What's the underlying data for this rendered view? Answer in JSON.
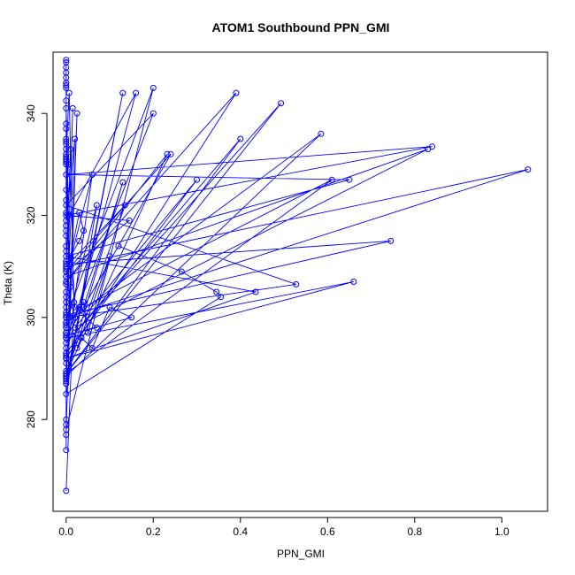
{
  "chart_data": {
    "type": "line",
    "title": "ATOM1 Southbound PPN_GMI",
    "xlabel": "PPN_GMI",
    "ylabel": "Theta (K)",
    "xlim": [
      -0.03,
      1.105
    ],
    "ylim": [
      262,
      352
    ],
    "xticks": [
      0.0,
      0.2,
      0.4,
      0.6,
      0.8,
      1.0
    ],
    "yticks": [
      280,
      300,
      320,
      340
    ],
    "xtick_labels": [
      "0.0",
      "0.2",
      "0.4",
      "0.6",
      "0.8",
      "1.0"
    ],
    "ytick_labels": [
      "280",
      "300",
      "320",
      "340"
    ],
    "markers": "open-circle",
    "grid": false,
    "color": "#0000ff",
    "series": [
      {
        "values": [
          [
            0.0,
            266.0
          ],
          [
            0.018,
            303.0
          ],
          [
            0.007,
            344.0
          ],
          [
            0.0,
            332.0
          ],
          [
            0.01,
            306.0
          ],
          [
            0.0,
            288.0
          ],
          [
            0.13,
            344.0
          ],
          [
            0.0,
            287.0
          ],
          [
            0.025,
            340.0
          ],
          [
            0.0,
            278.0
          ],
          [
            0.2,
            345.0
          ],
          [
            0.0,
            300.0
          ],
          [
            0.02,
            335.0
          ],
          [
            0.0,
            319.0
          ],
          [
            0.16,
            344.0
          ],
          [
            0.0,
            293.0
          ],
          [
            0.3,
            327.0
          ],
          [
            0.02,
            298.0
          ],
          [
            0.83,
            333.0
          ],
          [
            0.0,
            308.0
          ],
          [
            0.06,
            328.0
          ],
          [
            0.0,
            292.0
          ],
          [
            0.39,
            344.0
          ],
          [
            0.0,
            307.0
          ],
          [
            0.232,
            332.0
          ],
          [
            0.0,
            289.0
          ],
          [
            0.13,
            326.5
          ],
          [
            0.04,
            302.0
          ],
          [
            0.61,
            327.0
          ],
          [
            0.0,
            289.0
          ],
          [
            0.4,
            335.0
          ],
          [
            0.0,
            295.0
          ],
          [
            0.493,
            342.0
          ],
          [
            0.0,
            289.0
          ],
          [
            0.135,
            322.0
          ],
          [
            0.0,
            310.0
          ],
          [
            1.06,
            329.0
          ],
          [
            0.0,
            300.0
          ],
          [
            0.528,
            306.5
          ],
          [
            0.0,
            322.0
          ],
          [
            0.2,
            340.0
          ],
          [
            0.0,
            296.0
          ],
          [
            0.66,
            307.0
          ],
          [
            0.0,
            292.0
          ],
          [
            0.435,
            305.0
          ],
          [
            0.0,
            312.0
          ],
          [
            0.65,
            327.0
          ],
          [
            0.0,
            328.0
          ],
          [
            0.84,
            333.5
          ],
          [
            0.0,
            320.0
          ],
          [
            0.145,
            319.0
          ],
          [
            0.0,
            309.0
          ],
          [
            0.24,
            332.0
          ],
          [
            0.0,
            296.0
          ],
          [
            0.12,
            314.0
          ],
          [
            0.265,
            309.0
          ],
          [
            0.345,
            305.0
          ],
          [
            0.355,
            304.0
          ],
          [
            0.0,
            285.0
          ],
          [
            0.07,
            322.0
          ],
          [
            0.0,
            298.0
          ],
          [
            0.0,
            305.0
          ],
          [
            0.0,
            298.0
          ],
          [
            0.015,
            341.0
          ],
          [
            0.0,
            297.0
          ],
          [
            0.0,
            331.0
          ],
          [
            0.0,
            292.0
          ],
          [
            0.0,
            297.0
          ],
          [
            0.0,
            303.0
          ],
          [
            0.0,
            299.0
          ],
          [
            0.0,
            302.0
          ],
          [
            0.0,
            338.0
          ],
          [
            0.0,
            350.0
          ],
          [
            0.0,
            311.0
          ],
          [
            0.0,
            293.0
          ],
          [
            0.0,
            346.0
          ],
          [
            0.0,
            294.0
          ],
          [
            0.0,
            300.0
          ],
          [
            0.0,
            316.0
          ],
          [
            0.0,
            337.0
          ],
          [
            0.0,
            349.0
          ],
          [
            0.0,
            318.0
          ],
          [
            0.0,
            288.0
          ],
          [
            0.0,
            308.0
          ],
          [
            0.0,
            289.0
          ],
          [
            0.0,
            301.0
          ],
          [
            0.0,
            297.0
          ],
          [
            0.0,
            307.0
          ],
          [
            0.0,
            341.0
          ],
          [
            0.005,
            320.0
          ],
          [
            0.0,
            323.0
          ],
          [
            0.0,
            274.0
          ],
          [
            0.0,
            280.0
          ],
          [
            0.0,
            277.0
          ],
          [
            0.0,
            279.0
          ],
          [
            0.0,
            334.0
          ],
          [
            0.0,
            347.0
          ],
          [
            0.0,
            325.0
          ],
          [
            0.0,
            287.0
          ],
          [
            0.0,
            335.0
          ],
          [
            0.0,
            333.0
          ],
          [
            0.0,
            330.0
          ],
          [
            0.0,
            314.0
          ],
          [
            0.0,
            309.0
          ],
          [
            0.0,
            291.0
          ],
          [
            0.0,
            304.0
          ],
          [
            0.0,
            310.0
          ],
          [
            0.01,
            333.0
          ],
          [
            0.0,
            334.5
          ],
          [
            0.005,
            330.0
          ],
          [
            0.0,
            320.5
          ],
          [
            0.0,
            317.0
          ],
          [
            0.0,
            313.0
          ],
          [
            0.0,
            311.0
          ],
          [
            0.0,
            309.5
          ],
          [
            0.0,
            308.0
          ],
          [
            0.0,
            298.5
          ],
          [
            0.0,
            297.0
          ],
          [
            0.0,
            292.5
          ],
          [
            0.0,
            292.0
          ],
          [
            0.0,
            288.5
          ],
          [
            0.0,
            287.5
          ],
          [
            0.0,
            289.5
          ],
          [
            0.0,
            318.0
          ],
          [
            0.0,
            331.5
          ],
          [
            0.0,
            330.5
          ],
          [
            0.0,
            345.5
          ],
          [
            0.0,
            348.0
          ],
          [
            0.0,
            350.5
          ],
          [
            0.0,
            345.0
          ],
          [
            0.0,
            332.0
          ],
          [
            0.0,
            331.0
          ],
          [
            0.008,
            300.0
          ],
          [
            0.02,
            300.0
          ],
          [
            0.03,
            302.0
          ],
          [
            0.04,
            303.0
          ],
          [
            0.05,
            297.0
          ],
          [
            0.1,
            312.0
          ],
          [
            0.025,
            294.0
          ],
          [
            0.035,
            296.0
          ],
          [
            0.06,
            294.0
          ],
          [
            0.1,
            302.0
          ],
          [
            0.15,
            300.0
          ],
          [
            0.0,
            296.5
          ],
          [
            0.07,
            298.0
          ],
          [
            0.02,
            302.0
          ],
          [
            0.01,
            312.0
          ],
          [
            0.03,
            320.5
          ],
          [
            0.04,
            317.0
          ],
          [
            0.03,
            315.0
          ],
          [
            0.0,
            310.5
          ],
          [
            0.745,
            315.0
          ],
          [
            0.0,
            300.5
          ],
          [
            0.0,
            296.0
          ],
          [
            0.0,
            288.5
          ],
          [
            0.585,
            336.0
          ],
          [
            0.0,
            299.0
          ],
          [
            0.0,
            306.5
          ],
          [
            0.0,
            330.5
          ],
          [
            0.0,
            342.5
          ]
        ]
      }
    ]
  }
}
